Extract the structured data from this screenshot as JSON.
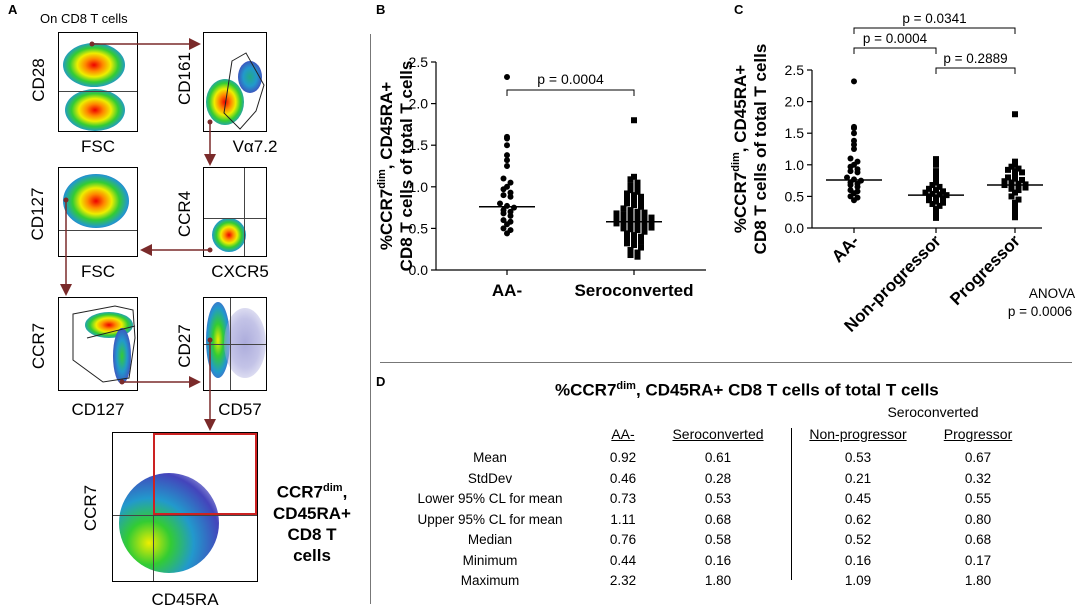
{
  "panel_a": {
    "label": "A",
    "title": "On CD8 T cells",
    "gates": [
      {
        "y": "CD28",
        "x": "FSC"
      },
      {
        "y": "CD161",
        "x": "Vα7.2"
      },
      {
        "y": "CD127",
        "x": "FSC"
      },
      {
        "y": "CCR4",
        "x": "CXCR5"
      },
      {
        "y": "CCR7",
        "x": "CD127"
      },
      {
        "y": "CD27",
        "x": "CD57"
      },
      {
        "y": "CCR7",
        "x": "CD45RA"
      }
    ],
    "final_label_line1": "CCR7",
    "final_label_sup": "dim",
    "final_label_line1b": ",",
    "final_label_line2": "CD45RA+",
    "final_label_line3": "CD8 T",
    "final_label_line4": "cells"
  },
  "panel_b_label": "B",
  "panel_c_label": "C",
  "panel_d": {
    "label": "D",
    "title_pre": "%CCR7",
    "title_sup": "dim",
    "title_post": ", CD45RA+ CD8 T cells of total T cells",
    "group_header": "Seroconverted",
    "columns": [
      "AA-",
      "Seroconverted",
      "Non-progressor",
      "Progressor"
    ],
    "rows": [
      {
        "stat": "Mean",
        "values": [
          "0.92",
          "0.61",
          "0.53",
          "0.67"
        ]
      },
      {
        "stat": "StdDev",
        "values": [
          "0.46",
          "0.28",
          "0.21",
          "0.32"
        ]
      },
      {
        "stat": "Lower 95% CL for mean",
        "values": [
          "0.73",
          "0.53",
          "0.45",
          "0.55"
        ]
      },
      {
        "stat": "Upper 95% CL for mean",
        "values": [
          "1.11",
          "0.68",
          "0.62",
          "0.80"
        ]
      },
      {
        "stat": "Median",
        "values": [
          "0.76",
          "0.58",
          "0.52",
          "0.68"
        ]
      },
      {
        "stat": "Minimum",
        "values": [
          "0.44",
          "0.16",
          "0.16",
          "0.17"
        ]
      },
      {
        "stat": "Maximum",
        "values": [
          "2.32",
          "1.80",
          "1.09",
          "1.80"
        ]
      }
    ]
  },
  "chart_data": [
    {
      "id": "B",
      "type": "scatter",
      "ylabel_line1_pre": "%CCR7",
      "ylabel_line1_sup": "dim",
      "ylabel_line1_post": ", CD45RA+",
      "ylabel_line2": "CD8 T cells of total T cells",
      "categories": [
        "AA-",
        "Seroconverted"
      ],
      "ylim": [
        0,
        2.5
      ],
      "yticks": [
        "0.0",
        "0.5",
        "1.0",
        "1.5",
        "2.0",
        "2.5"
      ],
      "medians": [
        0.76,
        0.58
      ],
      "p_value": "p = 0.0004",
      "series": [
        {
          "name": "AA-",
          "marker": "circle",
          "values": [
            2.32,
            1.6,
            1.58,
            1.5,
            1.38,
            1.32,
            1.25,
            1.1,
            1.05,
            1.0,
            0.97,
            0.93,
            0.9,
            0.88,
            0.8,
            0.77,
            0.75,
            0.72,
            0.7,
            0.68,
            0.65,
            0.6,
            0.58,
            0.55,
            0.5,
            0.48,
            0.44
          ]
        },
        {
          "name": "Seroconverted",
          "marker": "square",
          "values": [
            1.8,
            1.12,
            1.09,
            1.05,
            1.02,
            0.99,
            0.96,
            0.94,
            0.92,
            0.9,
            0.88,
            0.86,
            0.84,
            0.82,
            0.8,
            0.78,
            0.76,
            0.74,
            0.72,
            0.7,
            0.69,
            0.68,
            0.67,
            0.66,
            0.65,
            0.64,
            0.63,
            0.62,
            0.61,
            0.6,
            0.59,
            0.58,
            0.57,
            0.56,
            0.55,
            0.54,
            0.53,
            0.52,
            0.51,
            0.5,
            0.49,
            0.48,
            0.46,
            0.44,
            0.42,
            0.4,
            0.38,
            0.36,
            0.34,
            0.32,
            0.3,
            0.27,
            0.24,
            0.21,
            0.18,
            0.16
          ]
        }
      ]
    },
    {
      "id": "C",
      "type": "scatter",
      "ylabel_line1_pre": "%CCR7",
      "ylabel_line1_sup": "dim",
      "ylabel_line1_post": ", CD45RA+",
      "ylabel_line2": "CD8 T cells of total T cells",
      "categories": [
        "AA-",
        "Non-progressor",
        "Progressor"
      ],
      "ylim": [
        0,
        2.5
      ],
      "yticks": [
        "0.0",
        "0.5",
        "1.0",
        "1.5",
        "2.0",
        "2.5"
      ],
      "medians": [
        0.76,
        0.52,
        0.68
      ],
      "comparisons": [
        {
          "from": 0,
          "to": 2,
          "label": "p = 0.0341"
        },
        {
          "from": 0,
          "to": 1,
          "label": "p = 0.0004"
        },
        {
          "from": 1,
          "to": 2,
          "label": "p = 0.2889"
        }
      ],
      "anova_label": "ANOVA",
      "anova_p": "p = 0.0006",
      "series": [
        {
          "name": "AA-",
          "marker": "circle",
          "values": [
            2.32,
            1.6,
            1.58,
            1.5,
            1.38,
            1.32,
            1.25,
            1.1,
            1.05,
            1.0,
            0.97,
            0.93,
            0.9,
            0.88,
            0.8,
            0.77,
            0.75,
            0.72,
            0.7,
            0.68,
            0.65,
            0.6,
            0.58,
            0.55,
            0.5,
            0.48,
            0.44
          ]
        },
        {
          "name": "Non-progressor",
          "marker": "square",
          "values": [
            1.09,
            1.0,
            0.9,
            0.82,
            0.78,
            0.72,
            0.68,
            0.65,
            0.62,
            0.6,
            0.58,
            0.56,
            0.54,
            0.53,
            0.52,
            0.5,
            0.48,
            0.46,
            0.44,
            0.42,
            0.4,
            0.38,
            0.35,
            0.3,
            0.25,
            0.16
          ]
        },
        {
          "name": "Progressor",
          "marker": "square",
          "values": [
            1.8,
            1.05,
            1.0,
            0.97,
            0.94,
            0.92,
            0.9,
            0.88,
            0.85,
            0.8,
            0.78,
            0.76,
            0.74,
            0.72,
            0.7,
            0.69,
            0.68,
            0.67,
            0.66,
            0.64,
            0.62,
            0.6,
            0.56,
            0.5,
            0.45,
            0.4,
            0.35,
            0.28,
            0.22,
            0.17
          ]
        }
      ]
    }
  ]
}
